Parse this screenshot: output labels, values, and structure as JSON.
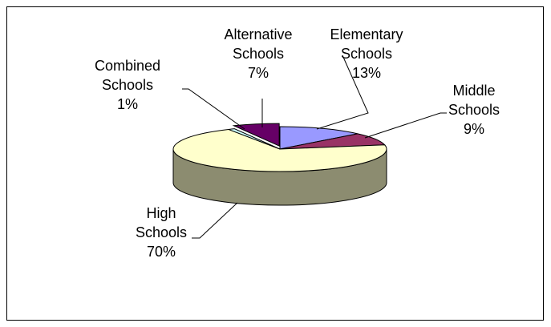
{
  "chart_data": {
    "type": "pie",
    "style": "3d",
    "title": "",
    "legend": "none",
    "slices": [
      {
        "name": "Elementary Schools",
        "label_lines": [
          "Elementary",
          "Schools"
        ],
        "percent_label": "13%",
        "value": 13,
        "color": "#9999ff"
      },
      {
        "name": "Middle Schools",
        "label_lines": [
          "Middle",
          "Schools"
        ],
        "percent_label": "9%",
        "value": 9,
        "color": "#993366"
      },
      {
        "name": "High Schools",
        "label_lines": [
          "High",
          "Schools"
        ],
        "percent_label": "70%",
        "value": 70,
        "color": "#ffffcc"
      },
      {
        "name": "Combined Schools",
        "label_lines": [
          "Combined",
          "Schools"
        ],
        "percent_label": "1%",
        "value": 1,
        "color": "#ccffff"
      },
      {
        "name": "Alternative Schools",
        "label_lines": [
          "Alternative",
          "Schools"
        ],
        "percent_label": "7%",
        "value": 7,
        "color": "#660066"
      }
    ]
  }
}
